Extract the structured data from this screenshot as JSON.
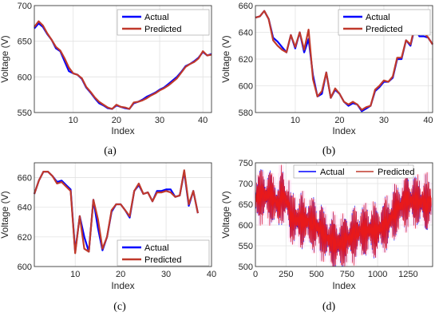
{
  "colors": {
    "actual": "#0000ff",
    "predicted": "#c0392b",
    "grid": "#e2e2e2",
    "axis": "#262626",
    "highlight": "#ffd9f2"
  },
  "chart_data": [
    {
      "id": "a",
      "type": "line",
      "caption": "(a)",
      "xlabel": "Index",
      "ylabel": "Voltage (V)",
      "xlim": [
        1,
        42
      ],
      "ylim": [
        550,
        700
      ],
      "xticks": [
        10,
        20,
        30,
        40
      ],
      "yticks": [
        550,
        600,
        650,
        700
      ],
      "grid": true,
      "legend": "top-right",
      "series": [
        {
          "name": "Actual",
          "color": "#0000ff",
          "values": [
            668,
            675,
            670,
            660,
            652,
            640,
            636,
            622,
            608,
            605,
            603,
            597,
            585,
            578,
            570,
            563,
            560,
            556,
            555,
            560,
            558,
            556,
            555,
            563,
            565,
            568,
            572,
            575,
            578,
            582,
            585,
            590,
            595,
            600,
            607,
            615,
            618,
            622,
            627,
            635,
            630,
            632
          ]
        },
        {
          "name": "Predicted",
          "color": "#c0392b",
          "values": [
            670,
            678,
            672,
            661,
            652,
            642,
            637,
            626,
            613,
            605,
            603,
            598,
            586,
            579,
            571,
            565,
            561,
            557,
            555,
            561,
            558,
            557,
            555,
            564,
            565,
            567,
            570,
            574,
            577,
            581,
            584,
            588,
            593,
            598,
            606,
            614,
            618,
            621,
            626,
            636,
            630,
            631
          ]
        }
      ]
    },
    {
      "id": "b",
      "type": "line",
      "caption": "(b)",
      "xlabel": "Index",
      "ylabel": "Voltage (V)",
      "xlim": [
        1,
        41
      ],
      "ylim": [
        580,
        660
      ],
      "xticks": [
        10,
        20,
        30,
        40
      ],
      "yticks": [
        580,
        600,
        620,
        640,
        660
      ],
      "grid": true,
      "legend": "top-right",
      "series": [
        {
          "name": "Actual",
          "color": "#0000ff",
          "values": [
            651,
            652,
            656,
            650,
            636,
            633,
            629,
            625,
            638,
            628,
            640,
            625,
            635,
            608,
            592,
            594,
            610,
            591,
            597,
            594,
            588,
            585,
            587,
            586,
            581,
            583,
            585,
            596,
            599,
            603,
            603,
            606,
            620,
            620,
            634,
            630,
            644,
            637,
            637,
            636,
            631
          ]
        },
        {
          "name": "Predicted",
          "color": "#c0392b",
          "values": [
            651,
            652,
            656,
            650,
            634,
            630,
            627,
            625,
            638,
            629,
            640,
            627,
            642,
            605,
            592,
            596,
            610,
            591,
            598,
            594,
            588,
            586,
            588,
            586,
            582,
            584,
            585,
            597,
            600,
            604,
            603,
            607,
            621,
            621,
            634,
            631,
            645,
            643,
            640,
            636,
            631
          ]
        }
      ]
    },
    {
      "id": "c",
      "type": "line",
      "caption": "(c)",
      "xlabel": "Index",
      "ylabel": "Voltage (V)",
      "xlim": [
        1,
        40
      ],
      "ylim": [
        600,
        670
      ],
      "xticks": [
        10,
        20,
        30,
        40
      ],
      "yticks": [
        600,
        620,
        640,
        660
      ],
      "grid": true,
      "legend": "bottom-right",
      "series": [
        {
          "name": "Actual",
          "color": "#0000ff",
          "values": [
            649,
            658,
            664,
            664,
            661,
            657,
            658,
            655,
            652,
            610,
            634,
            620,
            610,
            645,
            626,
            611,
            620,
            637,
            642,
            642,
            638,
            633,
            651,
            655,
            649,
            650,
            644,
            651,
            651,
            652,
            652,
            647,
            648,
            664,
            641,
            651,
            636
          ]
        },
        {
          "name": "Predicted",
          "color": "#c0392b",
          "values": [
            649,
            658,
            664,
            664,
            661,
            656,
            657,
            654,
            651,
            609,
            634,
            612,
            610,
            645,
            632,
            612,
            620,
            638,
            642,
            642,
            638,
            634,
            651,
            656,
            649,
            650,
            644,
            650,
            650,
            651,
            650,
            647,
            648,
            665,
            642,
            651,
            636
          ]
        }
      ]
    },
    {
      "id": "d",
      "type": "line",
      "caption": "(d)",
      "xlabel": "Index",
      "ylabel": "Voltage (V)",
      "xlim": [
        0,
        1450
      ],
      "ylim": [
        500,
        750
      ],
      "xticks": [
        0,
        250,
        500,
        750,
        1000,
        1250
      ],
      "yticks": [
        500,
        550,
        600,
        650,
        700,
        750
      ],
      "grid": true,
      "legend": "top",
      "series": [
        {
          "name": "Actual",
          "color": "#0000ff"
        },
        {
          "name": "Predicted",
          "color": "#c0392b"
        }
      ]
    }
  ]
}
